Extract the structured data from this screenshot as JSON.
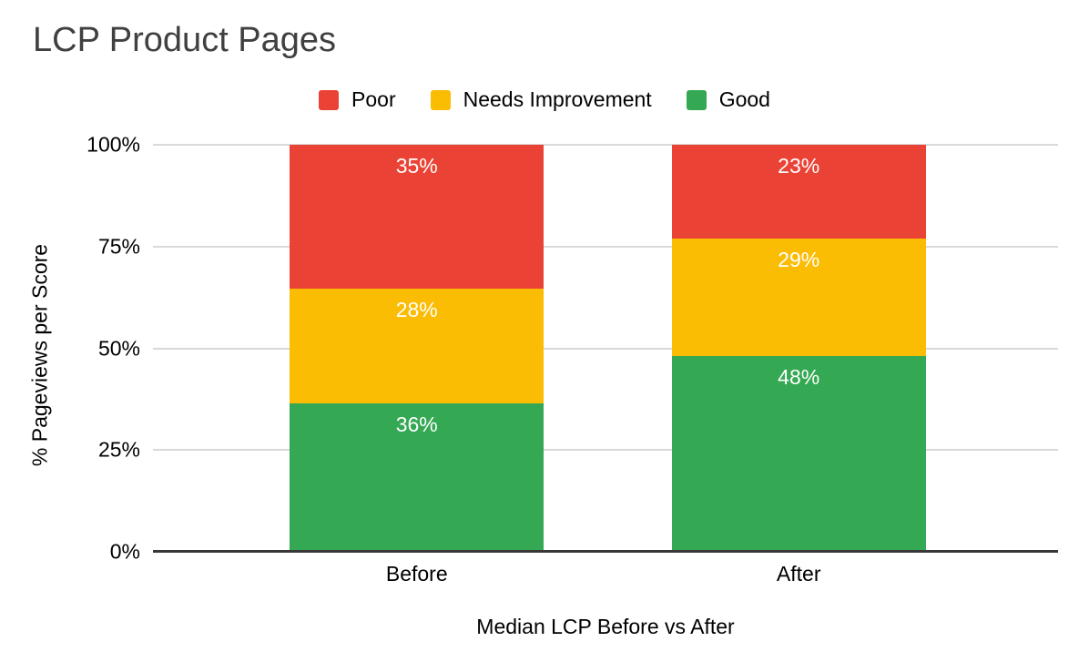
{
  "chart_data": {
    "type": "bar",
    "subtype": "stacked-percent",
    "title": "LCP Product Pages",
    "xlabel": "Median LCP Before vs After",
    "ylabel": "% Pageviews per Score",
    "categories": [
      "Before",
      "After"
    ],
    "series": [
      {
        "name": "Poor",
        "color": "#EA4335",
        "values": [
          35,
          23
        ]
      },
      {
        "name": "Needs Improvement",
        "color": "#FBBC04",
        "values": [
          28,
          29
        ]
      },
      {
        "name": "Good",
        "color": "#34A853",
        "values": [
          36,
          48
        ]
      }
    ],
    "stack_order_top_to_bottom": [
      "Poor",
      "Needs Improvement",
      "Good"
    ],
    "y_ticks": [
      "0%",
      "25%",
      "50%",
      "75%",
      "100%"
    ],
    "ylim": [
      0,
      100
    ],
    "grid": true,
    "legend_position": "top",
    "data_label_format": "{value}%"
  },
  "colors": {
    "background": "#ffffff",
    "title_text": "#404040",
    "axis_text": "#000000",
    "data_label_text": "#ffffff",
    "gridline": "#d9d9d9",
    "axis_line": "#383838",
    "poor": "#EA4335",
    "needs_improvement": "#FBBC04",
    "good": "#34A853"
  }
}
